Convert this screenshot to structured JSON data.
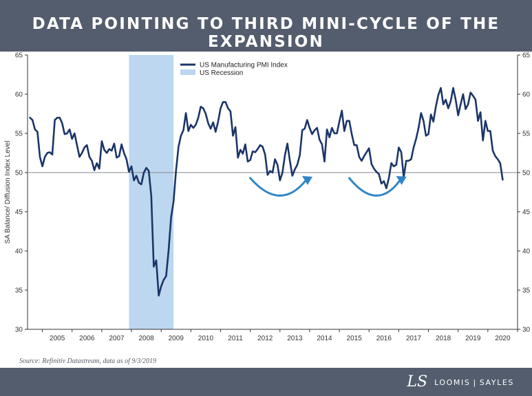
{
  "header": {
    "title": "DATA POINTING TO THIRD MINI-CYCLE OF THE EXPANSION"
  },
  "footer": {
    "source": "Source: Refinitiv Datastream, data as of 9/3/2019",
    "brand_left": "LOOMIS",
    "brand_sep": "|",
    "brand_right": "SAYLES",
    "logo_mark": "LS"
  },
  "colors": {
    "header_bg": "#535d6e",
    "line": "#1b3567",
    "recession": "#bcd7ef",
    "arrow": "#2f86c6",
    "reference_line": "#7f858e"
  },
  "chart_data": {
    "type": "line",
    "title": "",
    "ylabel": "SA Balance/ Diffusion Index Level",
    "xlabel": "",
    "ylim": [
      30,
      65
    ],
    "y_ticks": [
      30,
      35,
      40,
      45,
      50,
      55,
      60,
      65
    ],
    "x_range": [
      2004.5,
      2021.0
    ],
    "x_ticks": [
      "2005",
      "2006",
      "2007",
      "2008",
      "2009",
      "2010",
      "2011",
      "2012",
      "2013",
      "2014",
      "2015",
      "2016",
      "2017",
      "2018",
      "2019",
      "2020"
    ],
    "reference_line": 50,
    "grid": false,
    "legend_position": "top-left",
    "legend": [
      "US Manufacturing PMI Index",
      "US Recession"
    ],
    "recession": {
      "start": "2007-12",
      "end": "2009-06"
    },
    "annotations": [
      {
        "type": "curved-arrow",
        "from": "2012-01",
        "to": "2014-01",
        "meaning": "mini-cycle"
      },
      {
        "type": "curved-arrow",
        "from": "2015-05",
        "to": "2017-03",
        "meaning": "mini-cycle"
      }
    ],
    "series": [
      {
        "name": "US Manufacturing PMI Index",
        "x_start": "2004-08",
        "frequency": "monthly",
        "values": [
          57.0,
          56.7,
          55.5,
          55.2,
          52.0,
          50.8,
          52.0,
          52.5,
          52.6,
          52.3,
          56.7,
          57.0,
          57.0,
          56.3,
          54.9,
          55.0,
          55.5,
          54.3,
          55.0,
          53.5,
          52.0,
          52.5,
          53.2,
          53.5,
          52.0,
          51.5,
          50.3,
          51.2,
          50.5,
          54.0,
          52.9,
          52.5,
          53.0,
          52.8,
          53.7,
          51.9,
          52.1,
          53.6,
          52.5,
          51.7,
          50.1,
          50.8,
          49.0,
          49.6,
          48.7,
          48.5,
          50.0,
          50.6,
          50.2,
          47.0,
          38.0,
          38.8,
          34.3,
          35.5,
          36.3,
          36.8,
          40.1,
          44.3,
          46.3,
          50.3,
          53.3,
          54.7,
          55.4,
          57.6,
          55.3,
          56.1,
          55.7,
          56.1,
          57.0,
          58.4,
          58.2,
          57.5,
          56.3,
          55.6,
          56.4,
          55.2,
          56.5,
          58.2,
          59.0,
          59.0,
          58.2,
          57.8,
          54.7,
          55.8,
          51.9,
          52.9,
          52.4,
          53.6,
          51.4,
          51.6,
          52.7,
          52.6,
          53.0,
          53.5,
          53.3,
          52.3,
          49.7,
          50.2,
          50.0,
          51.7,
          51.0,
          49.0,
          50.0,
          52.2,
          53.7,
          51.5,
          49.6,
          50.4,
          51.0,
          52.2,
          55.4,
          55.6,
          56.7,
          55.7,
          54.9,
          55.4,
          55.7,
          54.2,
          53.6,
          51.4,
          55.5,
          54.5,
          55.7,
          55.0,
          55.0,
          56.5,
          57.9,
          55.3,
          56.6,
          56.6,
          54.9,
          53.5,
          53.5,
          52.0,
          51.5,
          52.1,
          52.6,
          53.1,
          51.1,
          50.5,
          50.1,
          49.8,
          48.6,
          48.9,
          48.0,
          49.3,
          51.2,
          50.8,
          51.0,
          53.2,
          52.6,
          49.4,
          51.5,
          51.5,
          51.7,
          53.2,
          54.3,
          55.7,
          57.6,
          56.6,
          54.7,
          54.9,
          57.4,
          56.5,
          58.4,
          59.9,
          60.8,
          58.7,
          59.3,
          58.2,
          59.1,
          60.8,
          59.3,
          57.3,
          58.7,
          60.0,
          58.1,
          58.7,
          60.2,
          59.8,
          59.3,
          56.6,
          57.7,
          54.1,
          56.6,
          55.3,
          55.3,
          52.8,
          52.1,
          51.7,
          51.2,
          49.1
        ]
      }
    ]
  }
}
